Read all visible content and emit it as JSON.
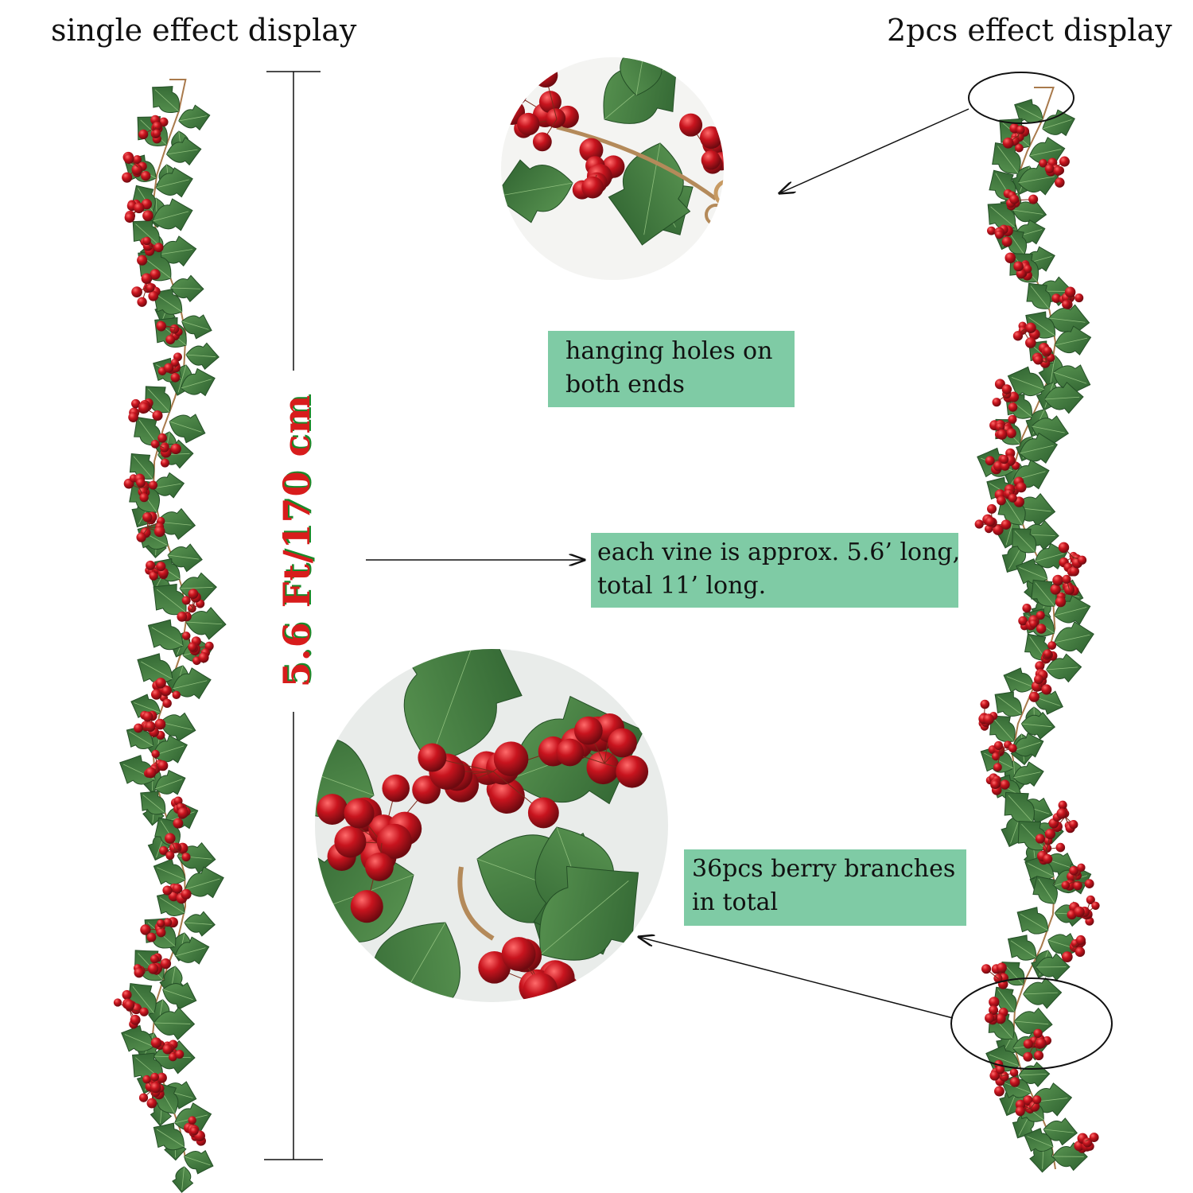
{
  "headings": {
    "single": "single effect display",
    "double": "2pcs effect display"
  },
  "measurement": {
    "label": "5.6 Ft/170 cm",
    "color": "#d81c1c",
    "shadow_color": "#1a8a2a"
  },
  "callouts": {
    "holes": [
      "hanging holes on",
      "both ends"
    ],
    "length": [
      "each vine is approx. 5.6’ long,",
      "total 11’ long."
    ],
    "branches": [
      "36pcs berry branches",
      "in total"
    ]
  },
  "colors": {
    "callout_bg": "#7fcba5",
    "berry": "#c0141e",
    "leaf": "#3d7a3a",
    "vine": "#a97a4c"
  },
  "icons": [
    "holly-berry-garland",
    "berry-cluster-closeup",
    "hanging-hole-closeup",
    "arrow",
    "ellipse-highlight"
  ]
}
